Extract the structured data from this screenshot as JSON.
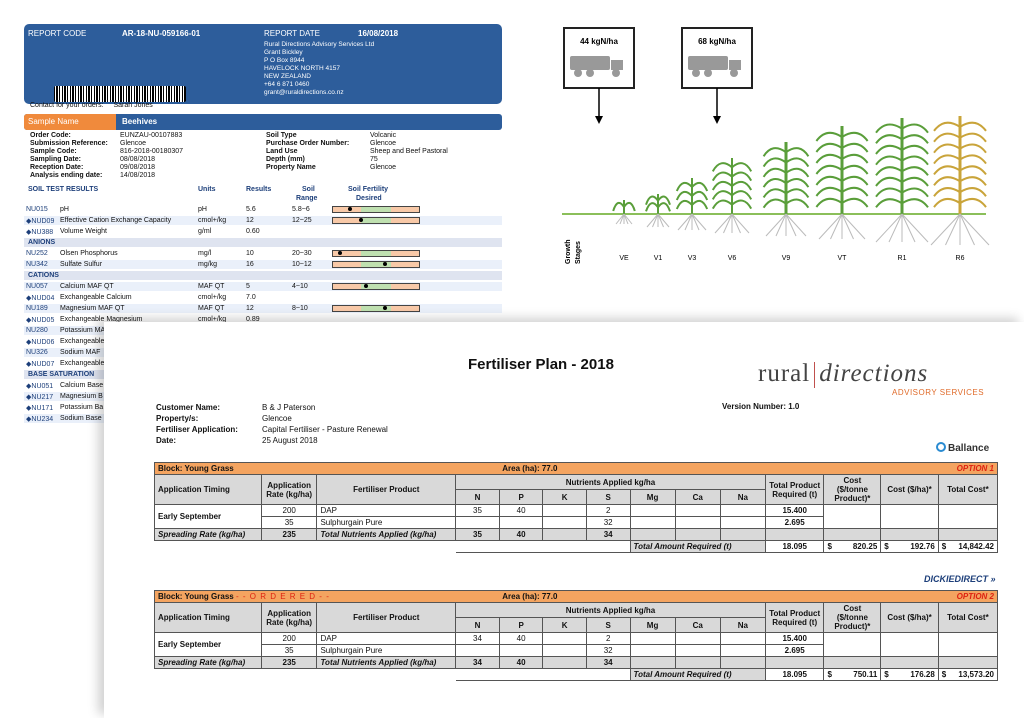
{
  "soil_report": {
    "report_code_label": "REPORT CODE",
    "report_code": "AR-18-NU-059166-01",
    "report_date_label": "REPORT DATE",
    "report_date": "16/08/2018",
    "address": [
      "Rural Directions Advisory Services Ltd",
      "Grant Bickley",
      "P O Box 8944",
      "HAVELOCK NORTH 4157",
      "NEW ZEALAND",
      "+64 6 871 0460",
      "grant@ruraldirections.co.nz"
    ],
    "contact_label": "Contact for your orders:",
    "contact": "Sarah Jones",
    "sample_name_label": "Sample Name",
    "sample_name": "Beehives",
    "left_fields": [
      {
        "k": "Order Code:",
        "v": "EUNZAU-00107883"
      },
      {
        "k": "Submission Reference:",
        "v": "Glencoe"
      },
      {
        "k": "Sample Code:",
        "v": "816-2018-00180307"
      },
      {
        "k": "Sampling Date:",
        "v": "08/08/2018"
      },
      {
        "k": "Reception Date:",
        "v": "09/08/2018"
      },
      {
        "k": "Analysis ending date:",
        "v": "14/08/2018"
      }
    ],
    "right_fields": [
      {
        "k": "Soil Type",
        "v": "Volcanic"
      },
      {
        "k": "Purchase Order Number:",
        "v": "Glencoe"
      },
      {
        "k": "Land Use",
        "v": "Sheep and Beef Pastoral"
      },
      {
        "k": "Depth (mm)",
        "v": "75"
      },
      {
        "k": "Property Name",
        "v": "Glencoe"
      }
    ],
    "results_header": {
      "title": "SOIL TEST RESULTS",
      "units": "Units",
      "results": "Results",
      "range1": "Soil",
      "range2": "Range",
      "fert1": "Soil Fertility",
      "fert2": "Desired"
    },
    "rows": [
      {
        "code": "NU015",
        "name": "pH",
        "unit": "pH",
        "result": "5.6",
        "range": "5.8~6",
        "dot": 0.2
      },
      {
        "code": "◆NUD09",
        "name": "Effective Cation Exchange Capacity",
        "unit": "cmol+/kg",
        "result": "12",
        "range": "12~25",
        "dot": 0.33
      },
      {
        "code": "◆NU388",
        "name": "Volume Weight",
        "unit": "g/ml",
        "result": "0.60",
        "range": ""
      },
      {
        "section": "ANIONS"
      },
      {
        "code": "NU252",
        "name": "Olsen Phosphorus",
        "unit": "mg/l",
        "result": "10",
        "range": "20~30",
        "dot": 0.08
      },
      {
        "code": "NU342",
        "name": "Sulfate Sulfur",
        "unit": "mg/kg",
        "result": "16",
        "range": "10~12",
        "dot": 0.6
      },
      {
        "section": "CATIONS"
      },
      {
        "code": "NU057",
        "name": "Calcium MAF QT",
        "unit": "MAF QT",
        "result": "5",
        "range": "4~10",
        "dot": 0.38
      },
      {
        "code": "◆NUD04",
        "name": "Exchangeable Calcium",
        "unit": "cmol+/kg",
        "result": "7.0",
        "range": ""
      },
      {
        "code": "NU189",
        "name": "Magnesium MAF QT",
        "unit": "MAF QT",
        "result": "12",
        "range": "8~10",
        "dot": 0.6
      },
      {
        "code": "◆NUD05",
        "name": "Exchangeable Magnesium",
        "unit": "cmol+/kg",
        "result": "0.89",
        "range": ""
      },
      {
        "code": "NU280",
        "name": "Potassium MA",
        "unit": "",
        "result": "",
        "range": ""
      },
      {
        "code": "◆NUD06",
        "name": "Exchangeable",
        "unit": "",
        "result": "",
        "range": ""
      },
      {
        "code": "NU326",
        "name": "Sodium  MAF",
        "unit": "",
        "result": "",
        "range": ""
      },
      {
        "code": "◆NUD07",
        "name": "Exchangeable",
        "unit": "",
        "result": "",
        "range": ""
      },
      {
        "section": "BASE SATURATION"
      },
      {
        "code": "◆NU051",
        "name": "Calcium Base",
        "unit": "",
        "result": "",
        "range": ""
      },
      {
        "code": "◆NU217",
        "name": "Magnesium B",
        "unit": "",
        "result": "",
        "range": ""
      },
      {
        "code": "◆NU171",
        "name": "Potassium Ba",
        "unit": "",
        "result": "",
        "range": ""
      },
      {
        "code": "◆NU234",
        "name": "Sodium Base",
        "unit": "",
        "result": "",
        "range": ""
      }
    ]
  },
  "growth": {
    "truck1_label": "44 kgN/ha",
    "truck2_label": "68 kgN/ha",
    "axis_label_1": "Growth",
    "axis_label_2": "Stages",
    "stages": [
      "VE",
      "V1",
      "V3",
      "V6",
      "V9",
      "VT",
      "R1",
      "R6"
    ]
  },
  "plan": {
    "title": "Fertiliser Plan - 2018",
    "logo_left": "rural",
    "logo_right": "directions",
    "logo_sub": "ADVISORY SERVICES",
    "customer": [
      {
        "k": "Customer Name:",
        "v": "B & J Paterson"
      },
      {
        "k": "Property/s:",
        "v": "Glencoe"
      },
      {
        "k": "Fertiliser Application:",
        "v": "Capital Fertiliser - Pasture Renewal"
      },
      {
        "k": "Date:",
        "v": "25 August 2018"
      }
    ],
    "version": "Version Number: 1.0",
    "brand1": "Ballance",
    "brand2": "DICKIEDIRECT",
    "headers": {
      "timing": "Application Timing",
      "rate": "Application Rate (kg/ha)",
      "product": "Fertiliser Product",
      "nutrients": "Nutrients Applied  kg/ha",
      "n": "N",
      "p": "P",
      "k": "K",
      "s": "S",
      "mg": "Mg",
      "ca": "Ca",
      "na": "Na",
      "total_product": "Total Product Required (t)",
      "cost_t": "Cost ($/tonne Product)*",
      "cost_ha": "Cost ($/ha)*",
      "total_cost": "Total Cost*"
    },
    "options": [
      {
        "block": "Block: Young Grass",
        "ordered": "",
        "area_label": "Area (ha):",
        "area": "77.0",
        "option": "OPTION 1",
        "timing": "Early September",
        "rows": [
          {
            "rate": "200",
            "product": "DAP",
            "n": "35",
            "p": "40",
            "k": "",
            "s": "2",
            "total": "15.400"
          },
          {
            "rate": "35",
            "product": "Sulphurgain Pure",
            "n": "",
            "p": "",
            "k": "",
            "s": "32",
            "total": "2.695"
          }
        ],
        "spread_label": "Spreading Rate (kg/ha)",
        "spread": "235",
        "tna_label": "Total Nutrients Applied (kg/ha)",
        "tn": "35",
        "tp": "40",
        "ts": "34",
        "tar_label": "Total Amount Required (t)",
        "tar": "18.095",
        "cost_t": "820.25",
        "cost_ha": "192.76",
        "total_cost": "14,842.42"
      },
      {
        "block": "Block: Young Grass",
        "ordered": "- - O R D E R E D - -",
        "area_label": "Area (ha):",
        "area": "77.0",
        "option": "OPTION 2",
        "timing": "Early September",
        "rows": [
          {
            "rate": "200",
            "product": "DAP",
            "n": "34",
            "p": "40",
            "k": "",
            "s": "2",
            "total": "15.400"
          },
          {
            "rate": "35",
            "product": "Sulphurgain Pure",
            "n": "",
            "p": "",
            "k": "",
            "s": "32",
            "total": "2.695"
          }
        ],
        "spread_label": "Spreading Rate (kg/ha)",
        "spread": "235",
        "tna_label": "Total Nutrients Applied (kg/ha)",
        "tn": "34",
        "tp": "40",
        "ts": "34",
        "tar_label": "Total Amount Required (t)",
        "tar": "18.095",
        "cost_t": "750.11",
        "cost_ha": "176.28",
        "total_cost": "13,573.20"
      }
    ]
  }
}
